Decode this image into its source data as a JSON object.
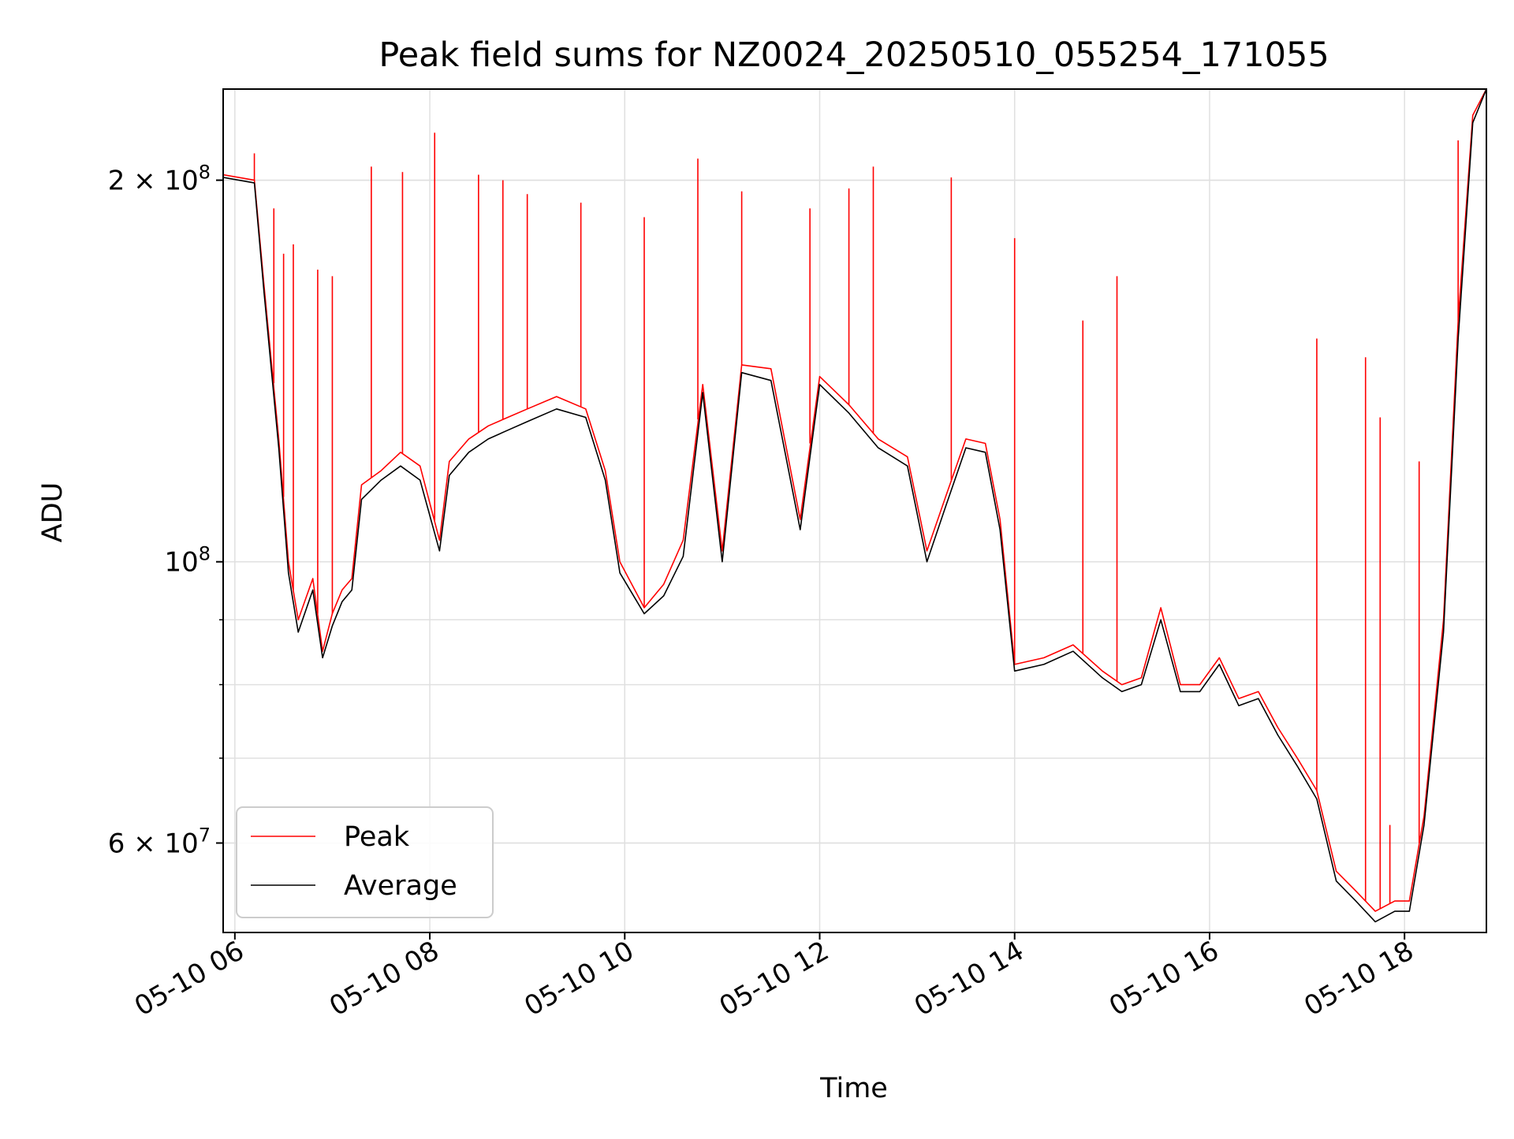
{
  "chart_data": {
    "type": "line",
    "title": "Peak field sums for NZ0024_20250510_055254_171055",
    "xlabel": "Time",
    "ylabel": "ADU",
    "yscale": "log",
    "ylim": [
      51000000,
      236000000
    ],
    "x_unit": "hours (2025-05-10)",
    "xlim": [
      5.88,
      18.84
    ],
    "grid": true,
    "legend_position": "lower-left",
    "x_ticks": [
      {
        "value": 6,
        "label": "05-10 06"
      },
      {
        "value": 8,
        "label": "05-10 08"
      },
      {
        "value": 10,
        "label": "05-10 10"
      },
      {
        "value": 12,
        "label": "05-10 12"
      },
      {
        "value": 14,
        "label": "05-10 14"
      },
      {
        "value": 16,
        "label": "05-10 16"
      },
      {
        "value": 18,
        "label": "05-10 18"
      }
    ],
    "y_major_ticks": [
      {
        "value": 100000000,
        "base": "10",
        "exp": "8",
        "mantissa": ""
      },
      {
        "value": 200000000,
        "base": "10",
        "exp": "8",
        "mantissa": "2"
      },
      {
        "value": 60000000,
        "base": "10",
        "exp": "7",
        "mantissa": "6"
      }
    ],
    "y_minor_ticks": [
      60000000,
      70000000,
      80000000,
      90000000,
      200000000
    ],
    "series": [
      {
        "name": "Peak",
        "color": "#ff0000",
        "x": [
          5.88,
          6.2,
          6.3,
          6.45,
          6.55,
          6.65,
          6.8,
          6.9,
          7.0,
          7.1,
          7.2,
          7.3,
          7.5,
          7.7,
          7.9,
          8.1,
          8.2,
          8.4,
          8.6,
          8.8,
          9.0,
          9.3,
          9.6,
          9.8,
          9.95,
          10.2,
          10.4,
          10.6,
          10.8,
          11.0,
          11.2,
          11.5,
          11.8,
          12.0,
          12.3,
          12.6,
          12.9,
          13.1,
          13.3,
          13.5,
          13.7,
          13.85,
          14.0,
          14.3,
          14.6,
          14.9,
          15.1,
          15.3,
          15.5,
          15.7,
          15.9,
          16.1,
          16.3,
          16.5,
          16.7,
          16.9,
          17.1,
          17.3,
          17.5,
          17.7,
          17.9,
          18.05,
          18.2,
          18.4,
          18.55,
          18.7,
          18.84
        ],
        "y": [
          202000000,
          200000000,
          165000000,
          125000000,
          100000000,
          90000000,
          97000000,
          85000000,
          91000000,
          95000000,
          97000000,
          115000000,
          118000000,
          122000000,
          119000000,
          104000000,
          120000000,
          125000000,
          128000000,
          130000000,
          132000000,
          135000000,
          132000000,
          118000000,
          100000000,
          92000000,
          96000000,
          104000000,
          138000000,
          102000000,
          143000000,
          142000000,
          108000000,
          140000000,
          133000000,
          125000000,
          121000000,
          102000000,
          113000000,
          125000000,
          124000000,
          108000000,
          83000000,
          84000000,
          86000000,
          82000000,
          80000000,
          81000000,
          92000000,
          80000000,
          80000000,
          84000000,
          78000000,
          79000000,
          74000000,
          70000000,
          66000000,
          57000000,
          55000000,
          53000000,
          54000000,
          54000000,
          63000000,
          90000000,
          155000000,
          225000000,
          236000000
        ]
      },
      {
        "name": "Average",
        "color": "#000000",
        "x": [
          5.88,
          6.2,
          6.3,
          6.45,
          6.55,
          6.65,
          6.8,
          6.9,
          7.0,
          7.1,
          7.2,
          7.3,
          7.5,
          7.7,
          7.9,
          8.1,
          8.2,
          8.4,
          8.6,
          8.8,
          9.0,
          9.3,
          9.6,
          9.8,
          9.95,
          10.2,
          10.4,
          10.6,
          10.8,
          11.0,
          11.2,
          11.5,
          11.8,
          12.0,
          12.3,
          12.6,
          12.9,
          13.1,
          13.3,
          13.5,
          13.7,
          13.85,
          14.0,
          14.3,
          14.6,
          14.9,
          15.1,
          15.3,
          15.5,
          15.7,
          15.9,
          16.1,
          16.3,
          16.5,
          16.7,
          16.9,
          17.1,
          17.3,
          17.5,
          17.7,
          17.9,
          18.05,
          18.2,
          18.4,
          18.55,
          18.7,
          18.84
        ],
        "y": [
          201000000,
          199000000,
          163000000,
          123000000,
          98000000,
          88000000,
          95000000,
          84000000,
          89000000,
          93000000,
          95000000,
          112000000,
          116000000,
          119000000,
          116000000,
          102000000,
          117000000,
          122000000,
          125000000,
          127000000,
          129000000,
          132000000,
          130000000,
          116000000,
          98000000,
          91000000,
          94000000,
          101000000,
          136000000,
          100000000,
          141000000,
          139000000,
          106000000,
          138000000,
          131000000,
          123000000,
          119000000,
          100000000,
          111000000,
          123000000,
          122000000,
          106000000,
          82000000,
          83000000,
          85000000,
          81000000,
          79000000,
          80000000,
          90000000,
          79000000,
          79000000,
          83000000,
          77000000,
          78000000,
          73000000,
          69000000,
          65000000,
          56000000,
          54000000,
          52000000,
          53000000,
          53000000,
          62000000,
          88000000,
          150000000,
          222000000,
          236000000
        ]
      }
    ],
    "peak_spikes": [
      {
        "x": 6.2,
        "y": 210000000
      },
      {
        "x": 6.4,
        "y": 190000000
      },
      {
        "x": 6.5,
        "y": 175000000
      },
      {
        "x": 6.6,
        "y": 178000000
      },
      {
        "x": 6.85,
        "y": 170000000
      },
      {
        "x": 7.0,
        "y": 168000000
      },
      {
        "x": 7.4,
        "y": 205000000
      },
      {
        "x": 7.72,
        "y": 203000000
      },
      {
        "x": 8.05,
        "y": 218000000
      },
      {
        "x": 8.5,
        "y": 202000000
      },
      {
        "x": 8.75,
        "y": 200000000
      },
      {
        "x": 9.0,
        "y": 195000000
      },
      {
        "x": 9.55,
        "y": 192000000
      },
      {
        "x": 10.2,
        "y": 187000000
      },
      {
        "x": 10.75,
        "y": 208000000
      },
      {
        "x": 11.2,
        "y": 196000000
      },
      {
        "x": 11.9,
        "y": 190000000
      },
      {
        "x": 12.3,
        "y": 197000000
      },
      {
        "x": 12.55,
        "y": 205000000
      },
      {
        "x": 13.35,
        "y": 201000000
      },
      {
        "x": 14.0,
        "y": 180000000
      },
      {
        "x": 14.7,
        "y": 155000000
      },
      {
        "x": 15.05,
        "y": 168000000
      },
      {
        "x": 17.1,
        "y": 150000000
      },
      {
        "x": 17.6,
        "y": 145000000
      },
      {
        "x": 17.75,
        "y": 130000000
      },
      {
        "x": 17.85,
        "y": 62000000
      },
      {
        "x": 18.15,
        "y": 120000000
      },
      {
        "x": 18.55,
        "y": 215000000
      }
    ]
  }
}
